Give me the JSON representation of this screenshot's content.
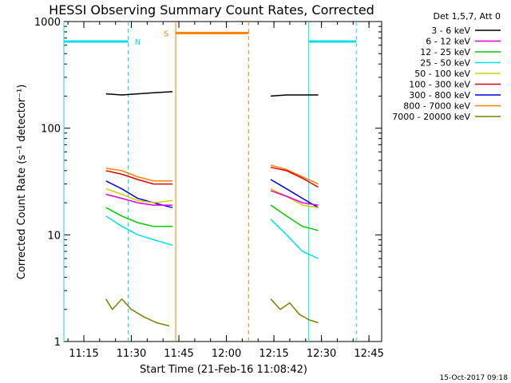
{
  "chart_data": {
    "type": "line",
    "title": "HESSI Observing Summary Count Rates, Corrected",
    "xlabel": "Start Time (21-Feb-16 11:08:42)",
    "ylabel": "Corrected Count Rate (s⁻¹ detector⁻¹)",
    "y_scale": "log",
    "ylim": [
      1,
      1000
    ],
    "xlim": [
      "11:08:42",
      "12:49:00"
    ],
    "x_ticks": [
      "11:15",
      "11:30",
      "11:45",
      "12:00",
      "12:15",
      "12:30",
      "12:45"
    ],
    "y_ticks": [
      "1",
      "10",
      "100",
      "1000"
    ],
    "grid": false,
    "legend_position": "right",
    "legend_header": "Det 1,5,7, Att 0",
    "footer_stamp": "15-Oct-2017 09:18",
    "series": [
      {
        "name": "3 - 6 keV",
        "color": "#000000",
        "x": [
          "11:22",
          "11:27",
          "11:32",
          "11:37",
          "11:43",
          "12:14",
          "12:19",
          "12:24",
          "12:29"
        ],
        "values": [
          210,
          205,
          210,
          215,
          220,
          200,
          205,
          205,
          205
        ]
      },
      {
        "name": "6 - 12 keV",
        "color": "#e000e0",
        "x": [
          "11:22",
          "11:27",
          "11:32",
          "11:37",
          "11:43",
          "12:14",
          "12:19",
          "12:24",
          "12:29"
        ],
        "values": [
          24,
          22,
          20,
          19,
          19,
          26,
          23,
          20,
          19
        ]
      },
      {
        "name": "12 - 25 keV",
        "color": "#00cc00",
        "x": [
          "11:22",
          "11:27",
          "11:32",
          "11:37",
          "11:43",
          "12:14",
          "12:19",
          "12:24",
          "12:29"
        ],
        "values": [
          18,
          15,
          13,
          12,
          12,
          19,
          15,
          12,
          11
        ]
      },
      {
        "name": "25 - 50 keV",
        "color": "#00e0e0",
        "x": [
          "11:22",
          "11:27",
          "11:32",
          "11:37",
          "11:43",
          "12:14",
          "12:19",
          "12:24",
          "12:29"
        ],
        "values": [
          15,
          12,
          10,
          9,
          8,
          14,
          10,
          7,
          6
        ]
      },
      {
        "name": "50 - 100 keV",
        "color": "#d0d000",
        "x": [
          "11:22",
          "11:27",
          "11:32",
          "11:37",
          "11:43",
          "12:14",
          "12:19",
          "12:24",
          "12:29"
        ],
        "values": [
          27,
          24,
          21,
          20,
          21,
          27,
          23,
          19,
          18
        ]
      },
      {
        "name": "100 - 300 keV",
        "color": "#e00000",
        "x": [
          "11:22",
          "11:27",
          "11:32",
          "11:37",
          "11:43",
          "12:14",
          "12:19",
          "12:24",
          "12:29"
        ],
        "values": [
          40,
          37,
          33,
          30,
          30,
          43,
          40,
          34,
          28
        ]
      },
      {
        "name": "300 - 800 keV",
        "color": "#0000e0",
        "x": [
          "11:22",
          "11:27",
          "11:32",
          "11:37",
          "11:43",
          "12:14",
          "12:19",
          "12:24",
          "12:29"
        ],
        "values": [
          32,
          27,
          22,
          20,
          18,
          33,
          27,
          22,
          18
        ]
      },
      {
        "name": "800 - 7000 keV",
        "color": "#ff8000",
        "x": [
          "11:22",
          "11:27",
          "11:32",
          "11:37",
          "11:43",
          "12:14",
          "12:19",
          "12:24",
          "12:29"
        ],
        "values": [
          42,
          40,
          35,
          32,
          32,
          45,
          41,
          35,
          30
        ]
      },
      {
        "name": "7000 - 20000 keV",
        "color": "#808000",
        "x": [
          "11:22",
          "11:24",
          "11:27",
          "11:30",
          "11:34",
          "11:38",
          "11:42",
          "12:14",
          "12:17",
          "12:20",
          "12:23",
          "12:26",
          "12:29"
        ],
        "values": [
          2.5,
          2,
          2.5,
          2,
          1.7,
          1.5,
          1.4,
          2.5,
          2,
          2.3,
          1.8,
          1.6,
          1.5
        ]
      }
    ],
    "attenuator_bars": [
      {
        "color": "#00e0e0",
        "start": "11:08:42",
        "end": "11:29",
        "value": 650
      },
      {
        "color": "#ff8000",
        "start": "11:44",
        "end": "12:07",
        "value": 780
      },
      {
        "color": "#00e0e0",
        "start": "12:26",
        "end": "12:41",
        "value": 650
      }
    ],
    "annotations": [
      {
        "text": "N",
        "color": "#00e0e0",
        "x": "11:32",
        "y": 650
      },
      {
        "text": "S",
        "color": "#ff8000",
        "x": "11:41",
        "y": 780
      }
    ],
    "vertical_markers": [
      {
        "color": "#00e0e0",
        "style": "solid",
        "x": "11:08:42"
      },
      {
        "color": "#00e0e0",
        "style": "dashed",
        "x": "11:29"
      },
      {
        "color": "#ff8000",
        "style": "solid",
        "x": "11:44"
      },
      {
        "color": "#ff8000",
        "style": "dashed",
        "x": "12:07"
      },
      {
        "color": "#00e0e0",
        "style": "solid",
        "x": "12:26"
      },
      {
        "color": "#00e0e0",
        "style": "dashed",
        "x": "12:41"
      }
    ]
  }
}
